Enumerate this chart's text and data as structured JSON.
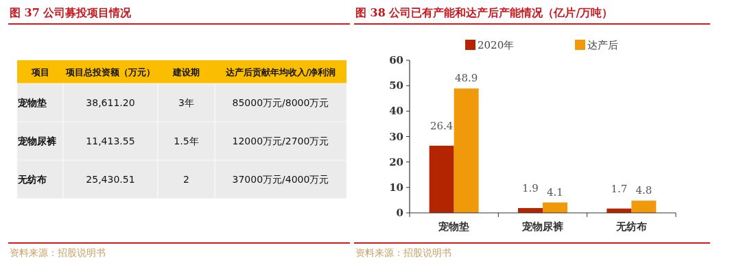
{
  "chart_data": [
    {
      "type": "other",
      "title": "图 37 公司募投项目情况",
      "categories": [
        "项目",
        "项目总投资额（万元）",
        "建设期",
        "达产后贡献年均收入/净利润"
      ],
      "cell_labels": [
        [
          "宠物垫",
          "38,611.20",
          "3年",
          "85000万元/8000万元"
        ],
        [
          "宠物尿裤",
          "11,413.55",
          "1.5年",
          "12000万元/2700万元"
        ],
        [
          "无纺布",
          "25,430.51",
          "2",
          "37000万元/4000万元"
        ]
      ],
      "annotations": [
        "资料来源：招股说明书"
      ]
    },
    {
      "type": "bar",
      "title": "图 38 公司已有产能和达产后产能情况（亿片/万吨）",
      "categories": [
        "宠物垫",
        "宠物尿裤",
        "无纺布"
      ],
      "series": [
        {
          "name": "2020年",
          "color": "#b32400",
          "values": [
            26.4,
            1.9,
            1.7
          ]
        },
        {
          "name": "达产后",
          "color": "#f0990a",
          "values": [
            48.9,
            4.1,
            4.8
          ]
        }
      ],
      "ylim": [
        0,
        60
      ],
      "yticks": [
        0,
        10,
        20,
        30,
        40,
        50,
        60
      ],
      "data_labels": true,
      "legend": "top",
      "grid": false,
      "annotations": [
        "资料来源：招股说明书"
      ]
    }
  ]
}
